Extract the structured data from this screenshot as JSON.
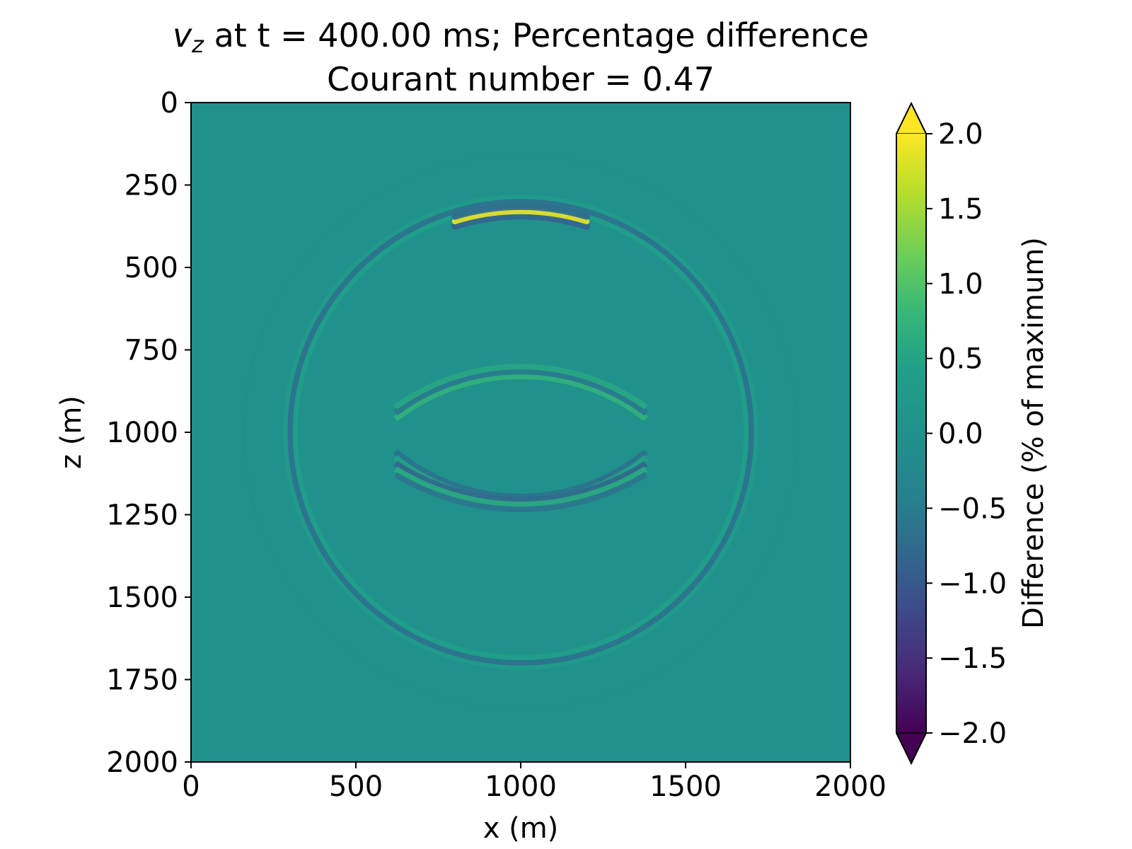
{
  "chart_data": {
    "type": "heatmap",
    "title": {
      "variable_symbol": "v",
      "variable_subscript": "z",
      "line1_rest": " at t = 400.00 ms; Percentage difference",
      "line2": "Courant number = 0.47"
    },
    "xlabel": "x (m)",
    "ylabel": "z (m)",
    "xlim": [
      0,
      2000
    ],
    "ylim": [
      2000,
      0
    ],
    "y_axis_inverted": true,
    "x_ticks": [
      "0",
      "500",
      "1000",
      "1500",
      "2000"
    ],
    "y_ticks": [
      "0",
      "250",
      "500",
      "750",
      "1000",
      "1250",
      "1500",
      "1750",
      "2000"
    ],
    "grid": false,
    "colormap": "viridis",
    "colormap_stops": [
      "#440154",
      "#482878",
      "#3e4989",
      "#31688e",
      "#26828e",
      "#21918c",
      "#1f9e89",
      "#35b779",
      "#6ece58",
      "#b5de2b",
      "#fde725"
    ],
    "background_color": "#21918c",
    "colorbar": {
      "label": "Difference (% of maximum)",
      "range": [
        -2.0,
        2.0
      ],
      "extend": "both",
      "ticks": [
        "2.0",
        "1.5",
        "1.0",
        "0.5",
        "0.0",
        "−0.5",
        "−1.0",
        "−1.5",
        "−2.0"
      ]
    },
    "features": [
      {
        "name": "outer-wavefront",
        "center": [
          1000,
          1000
        ],
        "radius": 700,
        "amplitude": 0.55
      },
      {
        "name": "upper-wavefront-peak",
        "center": [
          1000,
          1000
        ],
        "radius": 670,
        "arc_x_range": [
          800,
          1200
        ],
        "amplitude": 1.9
      },
      {
        "name": "reflected-arc",
        "center": [
          1000,
          1450
        ],
        "radius": 635,
        "amplitude": 0.9
      },
      {
        "name": "lower-trough-arc",
        "center": [
          1000,
          600
        ],
        "radius": 610,
        "amplitude": -0.8
      },
      {
        "name": "bottom-arc",
        "center": [
          1000,
          500
        ],
        "radius": 720,
        "amplitude": -1.0
      },
      {
        "name": "faint-ring",
        "center": [
          1000,
          1000
        ],
        "radius": 800,
        "amplitude": 0.15
      }
    ]
  }
}
